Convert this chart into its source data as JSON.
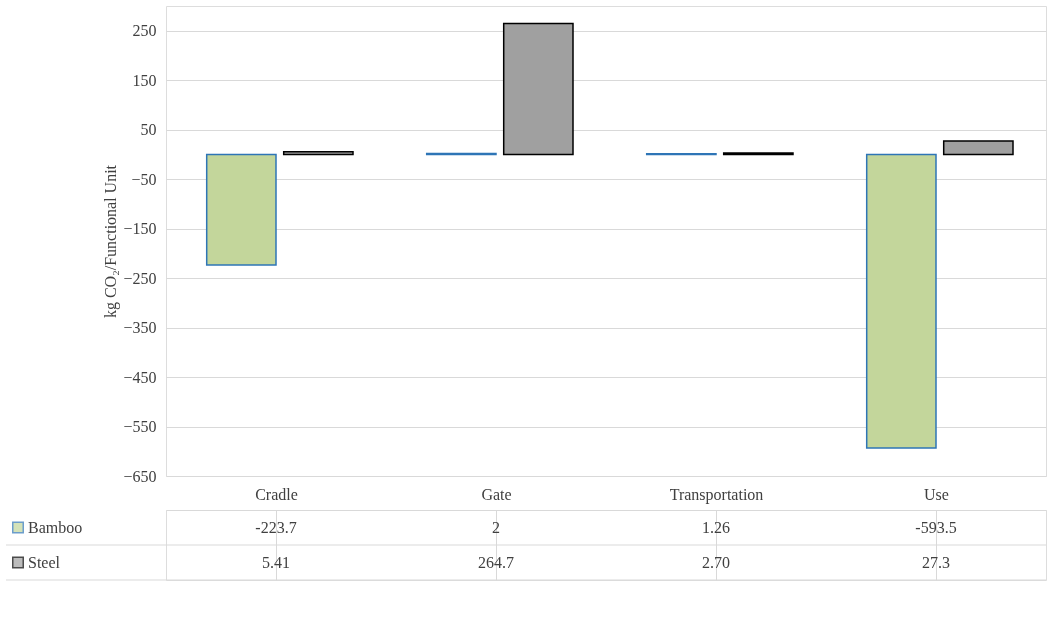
{
  "chart_data": {
    "type": "bar",
    "ylabel": "kg CO₂/Functional Unit",
    "categories": [
      "Cradle",
      "Gate",
      "Transportation",
      "Use"
    ],
    "series": [
      {
        "name": "Bamboo",
        "color": "#c3d69b",
        "values": [
          -223.7,
          2,
          1.26,
          -593.5
        ],
        "value_labels": [
          "-223.7",
          "2",
          "1.26",
          "-593.5"
        ]
      },
      {
        "name": "Steel",
        "color": "#a0a0a0",
        "values": [
          5.41,
          264.7,
          2.7,
          27.3
        ],
        "value_labels": [
          "5.41",
          "264.7",
          "2.70",
          "27.3"
        ]
      }
    ],
    "ylim": [
      -650,
      300
    ],
    "yticks": [
      -650,
      -550,
      -450,
      -350,
      -250,
      -150,
      -50,
      50,
      150,
      250
    ],
    "grid": "y",
    "legend": "bottom left"
  }
}
